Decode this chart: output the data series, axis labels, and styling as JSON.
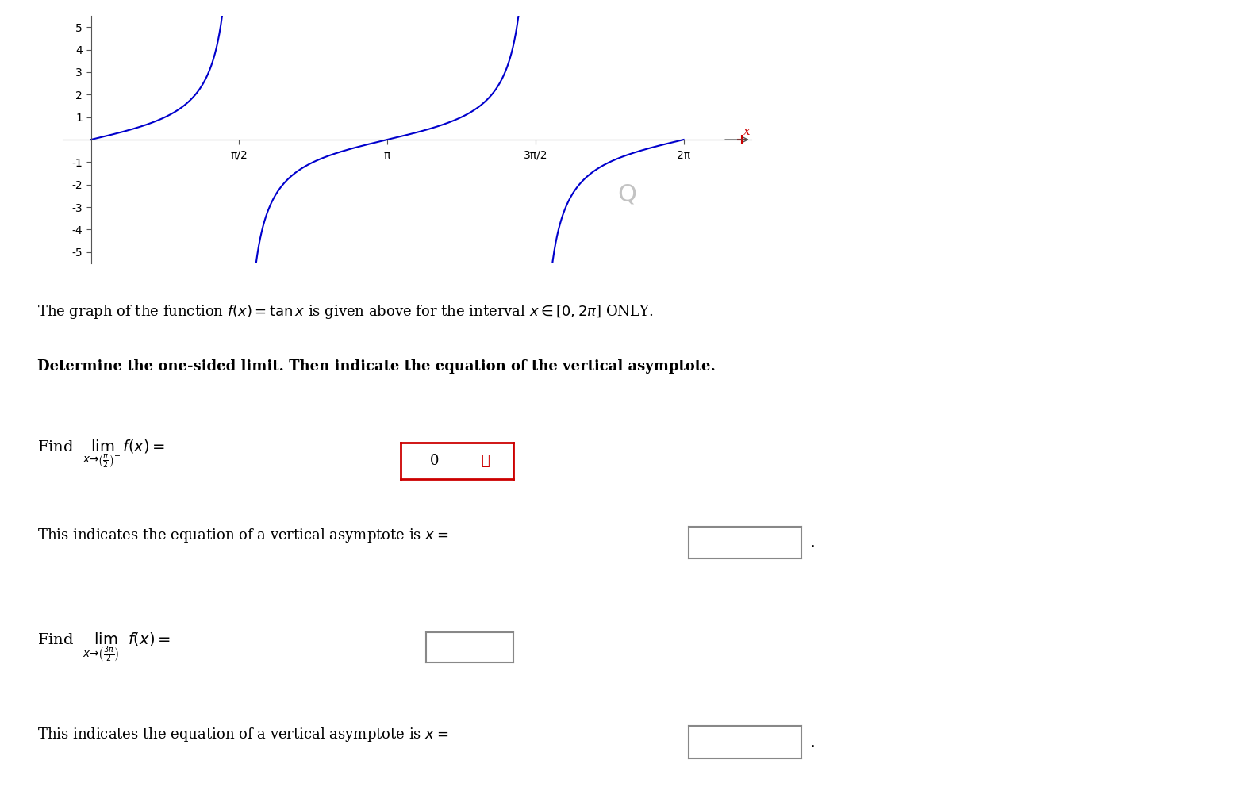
{
  "title": "",
  "graph_ratio": 0.33,
  "ylim": [
    -5.5,
    5.5
  ],
  "xlim": [
    -0.3,
    7.0
  ],
  "yticks": [
    -5,
    -4,
    -3,
    -2,
    -1,
    1,
    2,
    3,
    4,
    5
  ],
  "xtick_vals": [
    1.5707963267948966,
    3.141592653589793,
    4.71238898038469,
    6.283185307179586
  ],
  "xtick_labels": [
    "π/2",
    "π",
    "3π/2",
    "2π"
  ],
  "line_color": "#0000cc",
  "axis_color": "#555555",
  "text_color": "#000000",
  "x_label_color": "#cc0000",
  "answer_box_color": "#cc0000",
  "answer_box_fill": "#ffffff",
  "description_line1": "The graph of the function $f(x) = \\tan x$ is given above for the interval $x \\in [0, 2\\pi]$ ONLY.",
  "description_line2": "Determine the one-sided limit. Then indicate the equation of the vertical asymptote.",
  "find_lim1_text": "Find  $\\lim_{x \\to (\\frac{\\pi}{2})^-} f(x) =$",
  "find_lim1_answer": "0",
  "find_lim1_correct": false,
  "asym1_text": "This indicates the equation of a vertical asymptote is $x =$",
  "find_lim2_text": "Find  $\\lim_{x \\to (\\frac{3\\pi}{2})^-} f(x) =$",
  "asym2_text": "This indicates the equation of a vertical asymptote is $x =$",
  "background_color": "#ffffff"
}
